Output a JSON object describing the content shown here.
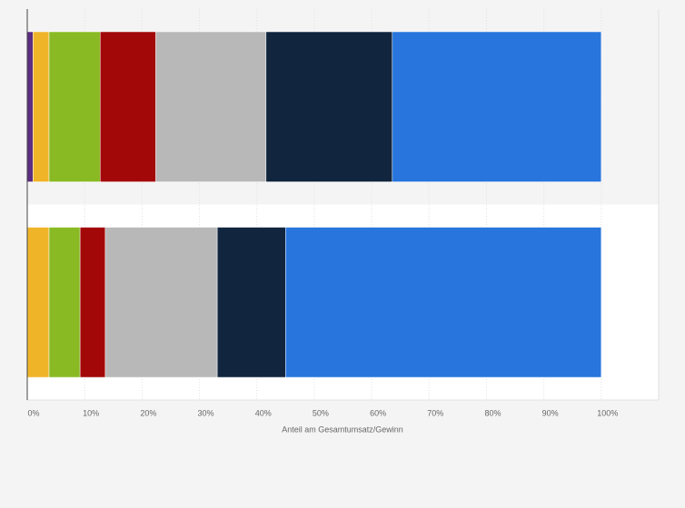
{
  "chart_data": {
    "type": "stacked-barh",
    "categories": [
      null,
      null
    ],
    "series": [
      {
        "color": "#5b2d82",
        "values": [
          1,
          0
        ]
      },
      {
        "color": "#f0b429",
        "values": [
          2.8,
          3.8
        ]
      },
      {
        "color": "#8aba23",
        "values": [
          8.9,
          5.4
        ]
      },
      {
        "color": "#a30808",
        "values": [
          9.7,
          4.4
        ]
      },
      {
        "color": "#b8b8b8",
        "values": [
          19.2,
          19.5
        ]
      },
      {
        "color": "#11253e",
        "values": [
          22,
          11.9
        ]
      },
      {
        "color": "#2876dd",
        "values": [
          36.4,
          55
        ]
      }
    ],
    "xlim": [
      0,
      110
    ],
    "xticks": [
      {
        "value": 0,
        "label": "0%"
      },
      {
        "value": 10,
        "label": "10%"
      },
      {
        "value": 20,
        "label": "20%"
      },
      {
        "value": 30,
        "label": "30%"
      },
      {
        "value": 40,
        "label": "40%"
      },
      {
        "value": 50,
        "label": "50%"
      },
      {
        "value": 60,
        "label": "60%"
      },
      {
        "value": 70,
        "label": "70%"
      },
      {
        "value": 80,
        "label": "80%"
      },
      {
        "value": 90,
        "label": "90%"
      },
      {
        "value": 100,
        "label": "100%"
      }
    ],
    "xlabel": "Anteil am Gesamtumsatz/Gewinn",
    "grid": true
  }
}
